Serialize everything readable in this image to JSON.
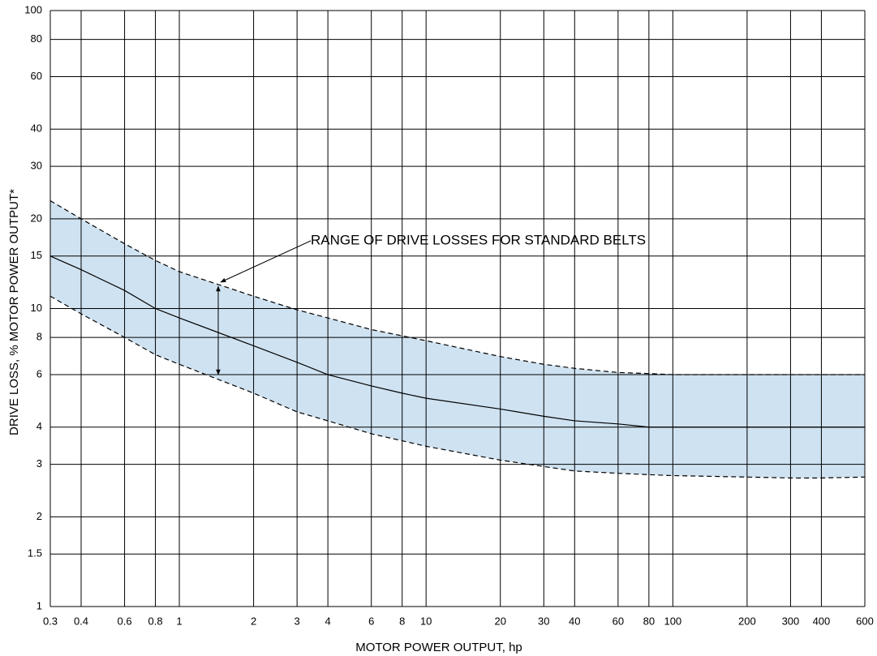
{
  "chart_data": {
    "type": "line",
    "xlabel": "MOTOR POWER OUTPUT, hp",
    "ylabel": "DRIVE LOSS, % MOTOR POWER OUTPUT*",
    "annotation": "RANGE OF DRIVE LOSSES FOR STANDARD BELTS",
    "x": [
      0.3,
      0.4,
      0.6,
      0.8,
      1,
      2,
      3,
      4,
      6,
      8,
      10,
      20,
      30,
      40,
      60,
      80,
      100,
      200,
      300,
      400,
      600
    ],
    "series": [
      {
        "color": "#000000",
        "dashed": true,
        "values": [
          23,
          20,
          16.5,
          14.5,
          13.3,
          11,
          9.9,
          9.3,
          8.5,
          8.1,
          7.8,
          6.9,
          6.5,
          6.3,
          6.1,
          6.05,
          6,
          6,
          6,
          6,
          6
        ]
      },
      {
        "color": "#000000",
        "dashed": false,
        "values": [
          15,
          13.5,
          11.5,
          10,
          9.3,
          7.5,
          6.6,
          6,
          5.5,
          5.2,
          5,
          4.6,
          4.35,
          4.2,
          4.1,
          4,
          4,
          4,
          4,
          4,
          4
        ]
      },
      {
        "color": "#000000",
        "dashed": true,
        "values": [
          11,
          9.6,
          8,
          7,
          6.5,
          5.2,
          4.5,
          4.2,
          3.8,
          3.6,
          3.45,
          3.1,
          2.95,
          2.85,
          2.8,
          2.77,
          2.75,
          2.72,
          2.7,
          2.7,
          2.72
        ]
      }
    ],
    "band_color": "#cfe2f1",
    "xscale": "log",
    "yscale": "log",
    "xlim": [
      0.3,
      600
    ],
    "ylim": [
      1,
      100
    ],
    "xticks": [
      0.3,
      0.4,
      0.6,
      0.8,
      1,
      2,
      3,
      4,
      6,
      8,
      10,
      20,
      30,
      40,
      60,
      80,
      100,
      200,
      300,
      400,
      600
    ],
    "yticks": [
      1,
      1.5,
      2,
      3,
      4,
      6,
      8,
      10,
      15,
      20,
      30,
      40,
      60,
      80,
      100
    ],
    "grid": true
  }
}
